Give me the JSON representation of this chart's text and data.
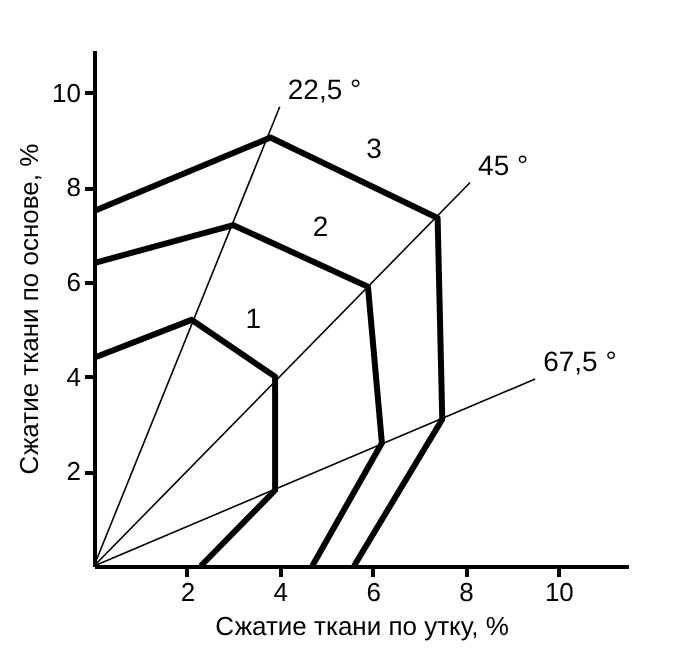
{
  "chart_data": {
    "type": "line",
    "xlabel": "Сжатие ткани по утку, %",
    "ylabel": "Сжатие ткани по основе, %",
    "xlim": [
      0,
      11.5
    ],
    "ylim": [
      0,
      10.9
    ],
    "xticks": [
      2,
      4,
      6,
      8,
      10
    ],
    "yticks": [
      2,
      4,
      6,
      8,
      10
    ],
    "grid": false,
    "marker": "none",
    "line_style": "solid",
    "series": [
      {
        "name": "1",
        "color": "#000000",
        "x": [
          0,
          2.1,
          3.9,
          3.9,
          2.3
        ],
        "values": [
          4.4,
          5.2,
          4.0,
          1.6,
          0
        ]
      },
      {
        "name": "2",
        "color": "#000000",
        "x": [
          0,
          3.0,
          5.9,
          6.2,
          4.7
        ],
        "values": [
          6.4,
          7.2,
          5.9,
          2.6,
          0
        ]
      },
      {
        "name": "3",
        "color": "#000000",
        "x": [
          0,
          3.8,
          7.4,
          7.5,
          5.6
        ],
        "values": [
          7.5,
          9.05,
          7.35,
          3.1,
          0
        ]
      },
      {
        "name": "22,5 °",
        "color": "#000000",
        "x": [
          0,
          4.0
        ],
        "values": [
          0,
          9.7
        ]
      },
      {
        "name": "45 °",
        "color": "#000000",
        "x": [
          0,
          8.1
        ],
        "values": [
          0,
          8.1
        ]
      },
      {
        "name": "67,5 °",
        "color": "#000000",
        "x": [
          0,
          9.5
        ],
        "values": [
          0,
          3.95
        ]
      }
    ]
  }
}
